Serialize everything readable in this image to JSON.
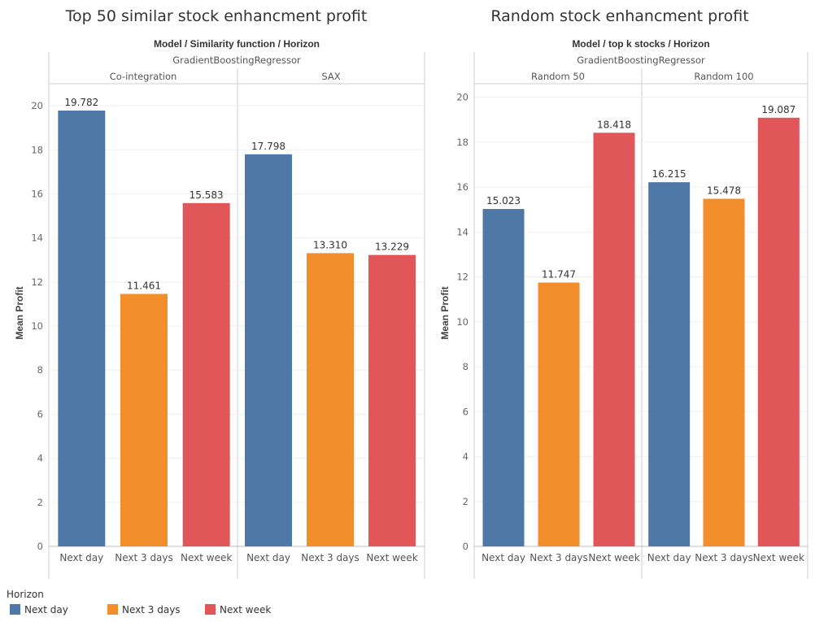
{
  "chart_data": [
    {
      "type": "bar",
      "title": "Top 50 similar stock enhancment profit",
      "header": "Model / Similarity function / Horizon",
      "model": "GradientBoostingRegressor",
      "ylabel": "Mean Profit",
      "ylim": [
        0,
        21
      ],
      "yticks": [
        0,
        2,
        4,
        6,
        8,
        10,
        12,
        14,
        16,
        18,
        20
      ],
      "grid": true,
      "groups": [
        {
          "name": "Co-integration",
          "categories": [
            "Next day",
            "Next 3 days",
            "Next week"
          ],
          "values": [
            19.782,
            11.461,
            15.583
          ],
          "value_labels": [
            "19.782",
            "11.461",
            "15.583"
          ]
        },
        {
          "name": "SAX",
          "categories": [
            "Next day",
            "Next 3 days",
            "Next week"
          ],
          "values": [
            17.798,
            13.31,
            13.229
          ],
          "value_labels": [
            "17.798",
            "13.310",
            "13.229"
          ]
        }
      ]
    },
    {
      "type": "bar",
      "title": "Random stock enhancment profit",
      "header": "Model / top k stocks / Horizon",
      "model": "GradientBoostingRegressor",
      "ylabel": "Mean Profit",
      "ylim": [
        0,
        20.6
      ],
      "yticks": [
        0,
        2,
        4,
        6,
        8,
        10,
        12,
        14,
        16,
        18,
        20
      ],
      "grid": true,
      "groups": [
        {
          "name": "Random 50",
          "categories": [
            "Next day",
            "Next 3 days",
            "Next week"
          ],
          "values": [
            15.023,
            11.747,
            18.418
          ],
          "value_labels": [
            "15.023",
            "11.747",
            "18.418"
          ]
        },
        {
          "name": "Random 100",
          "categories": [
            "Next day",
            "Next 3 days",
            "Next week"
          ],
          "values": [
            16.215,
            15.478,
            19.087
          ],
          "value_labels": [
            "16.215",
            "15.478",
            "19.087"
          ]
        }
      ]
    }
  ],
  "legend": {
    "title": "Horizon",
    "placement": "bottom-left",
    "items": [
      {
        "label": "Next day",
        "color": "#4e79a7"
      },
      {
        "label": "Next 3 days",
        "color": "#f28e2b"
      },
      {
        "label": "Next week",
        "color": "#e15759"
      }
    ]
  }
}
